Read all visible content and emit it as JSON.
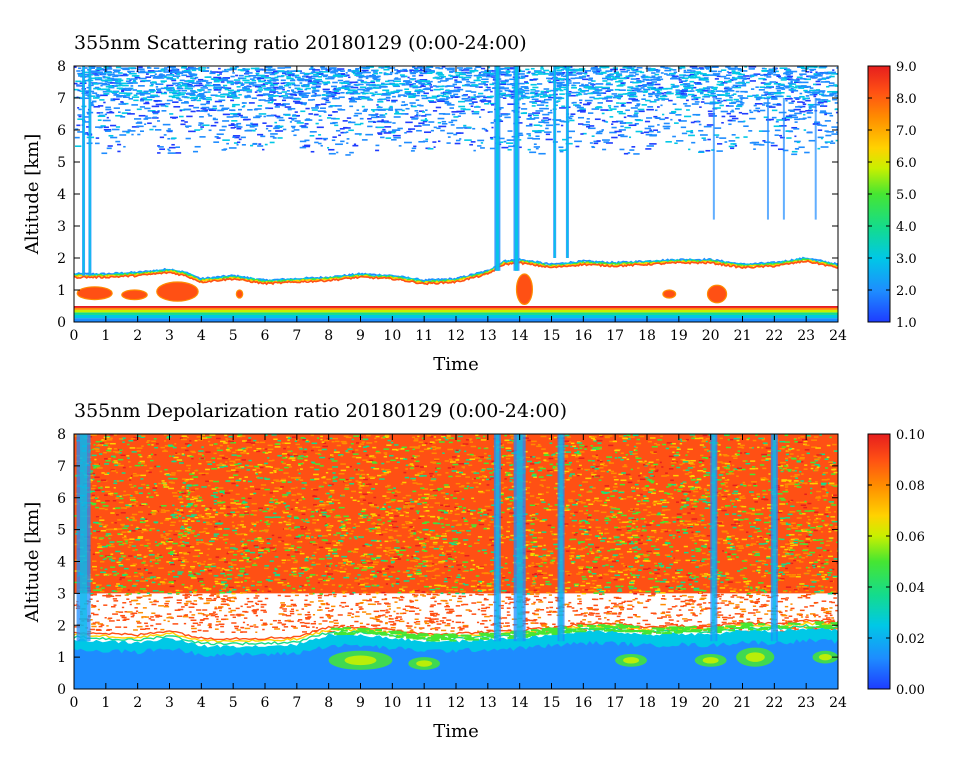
{
  "chart_data": [
    {
      "type": "heatmap",
      "title": "355nm Scattering ratio  20180129 (0:00-24:00)",
      "xlabel": "Time",
      "ylabel": "Altitude [km]",
      "xlim": [
        0,
        24
      ],
      "ylim": [
        0,
        8
      ],
      "x_ticks": [
        "0",
        "1",
        "2",
        "3",
        "4",
        "5",
        "6",
        "7",
        "8",
        "9",
        "10",
        "11",
        "12",
        "13",
        "14",
        "15",
        "16",
        "17",
        "18",
        "19",
        "20",
        "21",
        "22",
        "23",
        "24"
      ],
      "y_ticks": [
        "0",
        "1",
        "2",
        "3",
        "4",
        "5",
        "6",
        "7",
        "8"
      ],
      "colorbar": {
        "range": [
          1.0,
          9.0
        ],
        "tick_labels": [
          "1.0",
          "2.0",
          "3.0",
          "4.0",
          "5.0",
          "6.0",
          "7.0",
          "8.0",
          "9.0"
        ],
        "colors": [
          "#1e3cff",
          "#1e8cff",
          "#00c8e6",
          "#14dc8c",
          "#46e632",
          "#c8f000",
          "#ffd200",
          "#ff8c00",
          "#ff5014",
          "#e61e1e"
        ]
      },
      "features": {
        "boundary_layer_top_km": [
          [
            0,
            1.5
          ],
          [
            0.5,
            1.5
          ],
          [
            1,
            1.5
          ],
          [
            2,
            1.55
          ],
          [
            3,
            1.65
          ],
          [
            3.5,
            1.55
          ],
          [
            4,
            1.35
          ],
          [
            5,
            1.45
          ],
          [
            6,
            1.3
          ],
          [
            7,
            1.35
          ],
          [
            8,
            1.4
          ],
          [
            9,
            1.5
          ],
          [
            10,
            1.45
          ],
          [
            11,
            1.3
          ],
          [
            12,
            1.35
          ],
          [
            13,
            1.6
          ],
          [
            13.5,
            1.9
          ],
          [
            14,
            1.95
          ],
          [
            15,
            1.8
          ],
          [
            16,
            1.9
          ],
          [
            17,
            1.85
          ],
          [
            18,
            1.9
          ],
          [
            19,
            1.95
          ],
          [
            20,
            1.95
          ],
          [
            21,
            1.8
          ],
          [
            22,
            1.85
          ],
          [
            23,
            2.0
          ],
          [
            24,
            1.8
          ]
        ],
        "surface_layer_top_km": 0.5,
        "aerosol_patches": [
          {
            "x": [
              0.1,
              1.2
            ],
            "y": [
              0.7,
              1.1
            ]
          },
          {
            "x": [
              1.5,
              2.3
            ],
            "y": [
              0.7,
              1.0
            ]
          },
          {
            "x": [
              2.6,
              3.9
            ],
            "y": [
              0.65,
              1.25
            ]
          },
          {
            "x": [
              5.1,
              5.3
            ],
            "y": [
              0.75,
              1.0
            ]
          },
          {
            "x": [
              13.9,
              14.4
            ],
            "y": [
              0.55,
              1.5
            ]
          },
          {
            "x": [
              18.5,
              18.9
            ],
            "y": [
              0.75,
              1.0
            ]
          },
          {
            "x": [
              19.9,
              20.5
            ],
            "y": [
              0.6,
              1.15
            ]
          }
        ],
        "cirrus_base_km": 5.2,
        "vertical_features_hours": [
          0.3,
          0.5,
          13.3,
          13.9,
          15.1,
          15.5
        ]
      }
    },
    {
      "type": "heatmap",
      "title": "355nm Depolarization ratio  20180129 (0:00-24:00)",
      "xlabel": "Time",
      "ylabel": "Altitude [km]",
      "xlim": [
        0,
        24
      ],
      "ylim": [
        0,
        8
      ],
      "x_ticks": [
        "0",
        "1",
        "2",
        "3",
        "4",
        "5",
        "6",
        "7",
        "8",
        "9",
        "10",
        "11",
        "12",
        "13",
        "14",
        "15",
        "16",
        "17",
        "18",
        "19",
        "20",
        "21",
        "22",
        "23",
        "24"
      ],
      "y_ticks": [
        "0",
        "1",
        "2",
        "3",
        "4",
        "5",
        "6",
        "7",
        "8"
      ],
      "colorbar": {
        "range": [
          0.0,
          0.1
        ],
        "tick_labels": [
          "0.00",
          "0.02",
          "0.04",
          "0.06",
          "0.08",
          "0.10"
        ],
        "colors": [
          "#1e3cff",
          "#1e8cff",
          "#00c8e6",
          "#14dc8c",
          "#46e632",
          "#c8f000",
          "#ffd200",
          "#ff8c00",
          "#ff5014",
          "#e61e1e"
        ]
      },
      "features": {
        "low_depol_layer_top_km": [
          [
            0,
            1.55
          ],
          [
            1,
            1.5
          ],
          [
            2,
            1.45
          ],
          [
            3,
            1.6
          ],
          [
            4,
            1.35
          ],
          [
            5,
            1.35
          ],
          [
            6,
            1.35
          ],
          [
            7,
            1.4
          ],
          [
            8,
            1.7
          ],
          [
            9,
            1.7
          ],
          [
            10,
            1.6
          ],
          [
            11,
            1.5
          ],
          [
            12,
            1.5
          ],
          [
            13,
            1.55
          ],
          [
            14,
            1.6
          ],
          [
            15,
            1.7
          ],
          [
            16,
            1.8
          ],
          [
            17,
            1.8
          ],
          [
            18,
            1.7
          ],
          [
            19,
            1.75
          ],
          [
            20,
            1.7
          ],
          [
            21,
            1.85
          ],
          [
            22,
            1.8
          ],
          [
            23,
            1.9
          ],
          [
            24,
            1.85
          ]
        ],
        "sparse_band_km": [
          1.8,
          3.0
        ],
        "vertical_features_hours": [
          0.3,
          13.3,
          14.0,
          15.3,
          20.1,
          22.0
        ]
      }
    }
  ]
}
